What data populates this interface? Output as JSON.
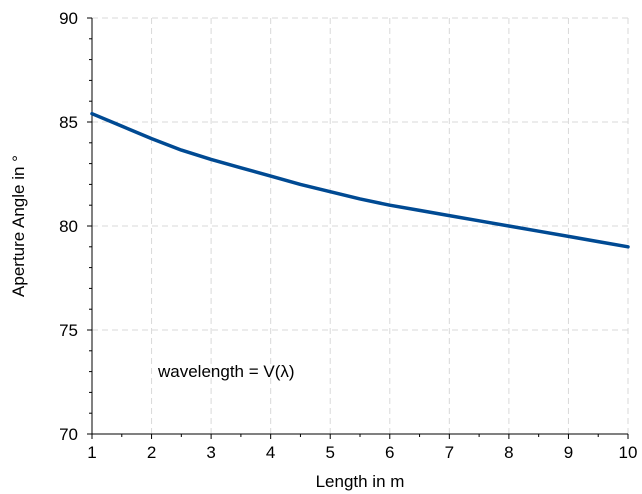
{
  "chart_data": {
    "type": "line",
    "title": "",
    "xlabel": "Length in m",
    "ylabel": "Aperture Angle in °",
    "xlim": [
      1,
      10
    ],
    "ylim": [
      70,
      90
    ],
    "xticks": [
      1,
      2,
      3,
      4,
      5,
      6,
      7,
      8,
      9,
      10
    ],
    "yticks": [
      70,
      75,
      80,
      85,
      90
    ],
    "grid": true,
    "annotation": "wavelength = V(λ)",
    "series": [
      {
        "color": "#004a93",
        "x": [
          1,
          1.5,
          2,
          2.5,
          3,
          3.5,
          4,
          4.5,
          5,
          5.5,
          6,
          6.5,
          7,
          7.5,
          8,
          8.5,
          9,
          9.5,
          10
        ],
        "y": [
          85.4,
          84.8,
          84.2,
          83.65,
          83.2,
          82.8,
          82.4,
          82.0,
          81.65,
          81.3,
          81.0,
          80.75,
          80.5,
          80.25,
          80.0,
          79.75,
          79.5,
          79.25,
          79.0
        ]
      }
    ]
  }
}
